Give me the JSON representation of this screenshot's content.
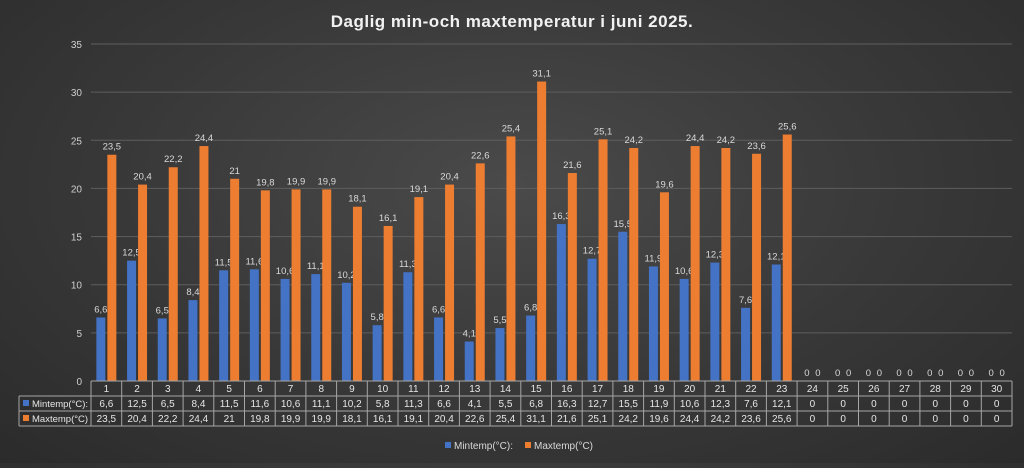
{
  "chart_data": {
    "type": "bar",
    "title": "Daglig min-och maxtemperatur i juni 2025.",
    "categories": [
      "1",
      "2",
      "3",
      "4",
      "5",
      "6",
      "7",
      "8",
      "9",
      "10",
      "11",
      "12",
      "13",
      "14",
      "15",
      "16",
      "17",
      "18",
      "19",
      "20",
      "21",
      "22",
      "23",
      "24",
      "25",
      "26",
      "27",
      "28",
      "29",
      "30"
    ],
    "series": [
      {
        "name": "Mintemp(°C):",
        "color": "#4472c4",
        "values": [
          6.6,
          12.5,
          6.5,
          8.4,
          11.5,
          11.6,
          10.6,
          11.1,
          10.2,
          5.8,
          11.3,
          6.6,
          4.1,
          5.5,
          6.8,
          16.3,
          12.7,
          15.5,
          11.9,
          10.6,
          12.3,
          7.6,
          12.1,
          0,
          0,
          0,
          0,
          0,
          0,
          0
        ],
        "labels": [
          "6,6",
          "12,5",
          "6,5",
          "8,4",
          "11,5",
          "11,6",
          "10,6",
          "11,1",
          "10,2",
          "5,8",
          "11,3",
          "6,6",
          "4,1",
          "5,5",
          "6,8",
          "16,3",
          "12,7",
          "15,5",
          "11,9",
          "10,6",
          "12,3",
          "7,6",
          "12,1",
          "0",
          "0",
          "0",
          "0",
          "0",
          "0",
          "0"
        ]
      },
      {
        "name": "Maxtemp(°C)",
        "color": "#ed7d31",
        "values": [
          23.5,
          20.4,
          22.2,
          24.4,
          21,
          19.8,
          19.9,
          19.9,
          18.1,
          16.1,
          19.1,
          20.4,
          22.6,
          25.4,
          31.1,
          21.6,
          25.1,
          24.2,
          19.6,
          24.4,
          24.2,
          23.6,
          25.6,
          0,
          0,
          0,
          0,
          0,
          0,
          0
        ],
        "labels": [
          "23,5",
          "20,4",
          "22,2",
          "24,4",
          "21",
          "19,8",
          "19,9",
          "19,9",
          "18,1",
          "16,1",
          "19,1",
          "20,4",
          "22,6",
          "25,4",
          "31,1",
          "21,6",
          "25,1",
          "24,2",
          "19,6",
          "24,4",
          "24,2",
          "23,6",
          "25,6",
          "0",
          "0",
          "0",
          "0",
          "0",
          "0",
          "0"
        ]
      }
    ],
    "y_ticks": [
      "0",
      "5",
      "10",
      "15",
      "20",
      "25",
      "30",
      "35"
    ],
    "ylim": [
      0,
      35
    ],
    "grid": true,
    "legend": "bottom",
    "data_table": true
  }
}
